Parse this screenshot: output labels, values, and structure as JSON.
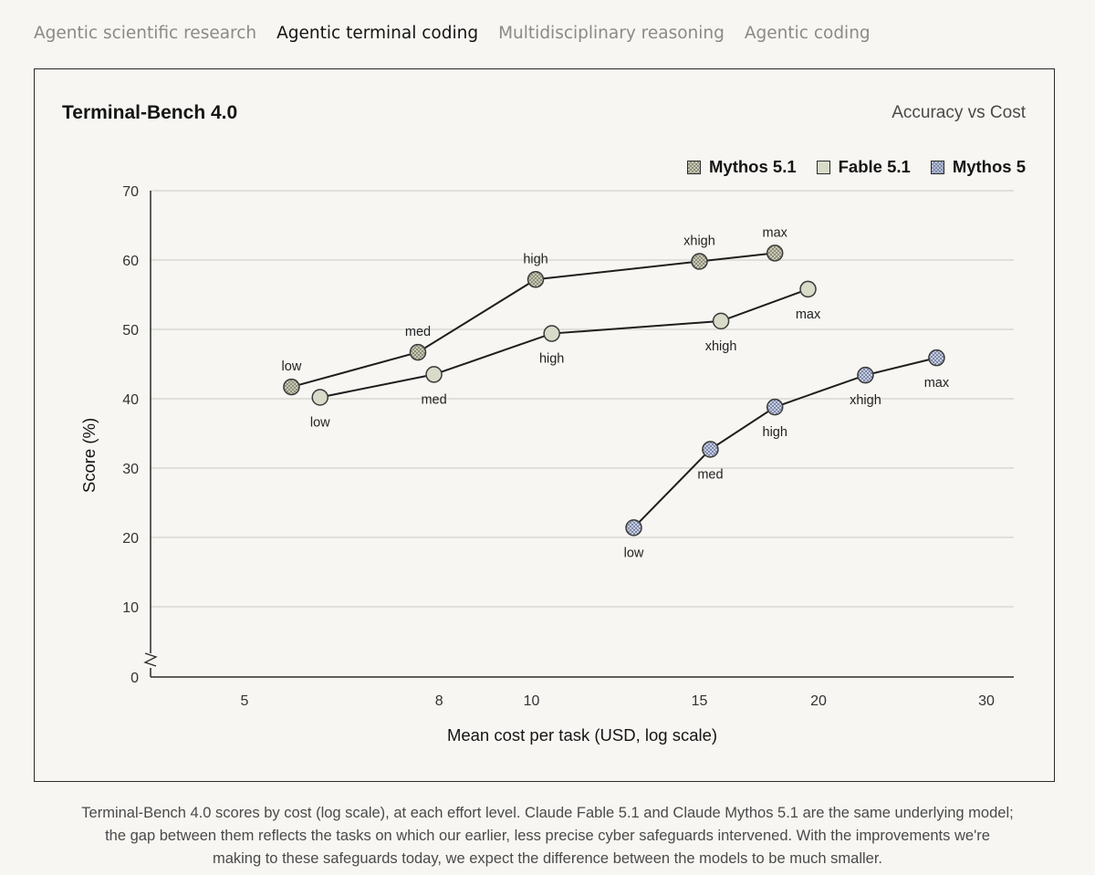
{
  "tabs": [
    {
      "label": "Agentic scientific research",
      "active": false
    },
    {
      "label": "Agentic terminal coding",
      "active": true
    },
    {
      "label": "Multidisciplinary reasoning",
      "active": false
    },
    {
      "label": "Agentic coding",
      "active": false
    }
  ],
  "card": {
    "title": "Terminal-Bench 4.0",
    "subtitle": "Accuracy vs Cost"
  },
  "legend": [
    {
      "name": "Mythos 5.1",
      "pattern": "checker",
      "color": "#c9c8b6"
    },
    {
      "name": "Fable 5.1",
      "pattern": "solid",
      "color": "#d9dbc9"
    },
    {
      "name": "Mythos 5",
      "pattern": "checker",
      "color": "#b7bfd4"
    }
  ],
  "caption": {
    "line1": "Terminal-Bench 4.0 scores by cost (log scale), at each effort level. Claude Fable 5.1 and Claude Mythos 5.1 are the same underlying model;",
    "line2": "the gap between them reflects the tasks on which our earlier, less precise cyber safeguards intervened. With the improvements we're",
    "line3": "making to these safeguards today, we expect the difference between the models to be much smaller."
  },
  "chart_data": {
    "type": "line",
    "xscale": "log",
    "xlabel": "Mean cost per task (USD, log scale)",
    "ylabel": "Score (%)",
    "xlim": [
      4,
      33
    ],
    "ylim": [
      0,
      70
    ],
    "y_axis_break": true,
    "xticks": [
      5,
      8,
      10,
      15,
      20,
      30
    ],
    "yticks": [
      0,
      10,
      20,
      30,
      40,
      50,
      60,
      70
    ],
    "grid": "horizontal",
    "legend_position": "top-right",
    "series": [
      {
        "name": "Mythos 5.1",
        "color": "#c9c8b6",
        "pattern": "checker",
        "points": [
          {
            "x": 5.6,
            "y": 41.7,
            "label": "low",
            "label_pos": "above"
          },
          {
            "x": 7.6,
            "y": 46.7,
            "label": "med",
            "label_pos": "above"
          },
          {
            "x": 10.1,
            "y": 57.2,
            "label": "high",
            "label_pos": "above"
          },
          {
            "x": 15.0,
            "y": 59.8,
            "label": "xhigh",
            "label_pos": "above"
          },
          {
            "x": 18.0,
            "y": 61.0,
            "label": "max",
            "label_pos": "above"
          }
        ]
      },
      {
        "name": "Fable 5.1",
        "color": "#d9dbc9",
        "pattern": "solid",
        "points": [
          {
            "x": 6.0,
            "y": 40.2,
            "label": "low",
            "label_pos": "below"
          },
          {
            "x": 7.9,
            "y": 43.5,
            "label": "med",
            "label_pos": "below"
          },
          {
            "x": 10.5,
            "y": 49.4,
            "label": "high",
            "label_pos": "below"
          },
          {
            "x": 15.8,
            "y": 51.2,
            "label": "xhigh",
            "label_pos": "below"
          },
          {
            "x": 19.5,
            "y": 55.8,
            "label": "max",
            "label_pos": "below"
          }
        ]
      },
      {
        "name": "Mythos 5",
        "color": "#b7bfd4",
        "pattern": "checker",
        "points": [
          {
            "x": 12.8,
            "y": 21.4,
            "label": "low",
            "label_pos": "below"
          },
          {
            "x": 15.4,
            "y": 32.7,
            "label": "med",
            "label_pos": "below"
          },
          {
            "x": 18.0,
            "y": 38.8,
            "label": "high",
            "label_pos": "below"
          },
          {
            "x": 22.4,
            "y": 43.4,
            "label": "xhigh",
            "label_pos": "below"
          },
          {
            "x": 26.6,
            "y": 45.9,
            "label": "max",
            "label_pos": "below"
          }
        ]
      }
    ]
  }
}
